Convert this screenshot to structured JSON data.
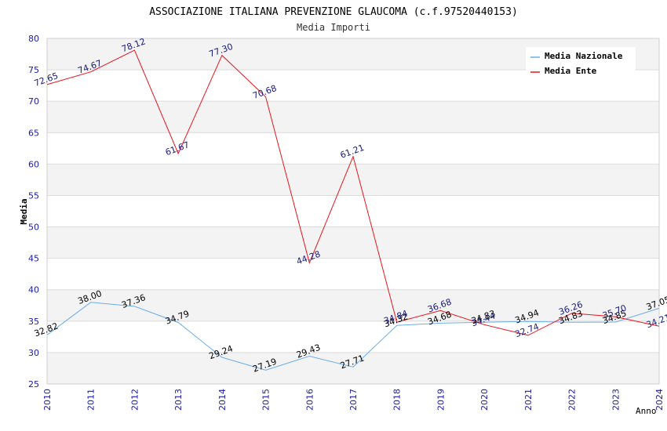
{
  "chart_data": {
    "type": "line",
    "title": "ASSOCIAZIONE ITALIANA PREVENZIONE GLAUCOMA (c.f.97520440153)",
    "subtitle": "Media Importi",
    "xlabel": "Anno",
    "ylabel": "Media",
    "ylim": [
      25,
      80
    ],
    "ytick_step": 5,
    "grid": true,
    "legend_position": "top-right",
    "x": [
      2010,
      2011,
      2012,
      2013,
      2014,
      2015,
      2016,
      2017,
      2018,
      2019,
      2020,
      2021,
      2022,
      2023,
      2024
    ],
    "series": [
      {
        "name": "Media Nazionale",
        "color": "#6aaee8",
        "label_color": "#000000",
        "values": [
          32.82,
          38.0,
          37.36,
          34.79,
          29.24,
          27.19,
          29.43,
          27.71,
          34.32,
          34.68,
          34.83,
          34.94,
          34.83,
          34.85,
          37.05
        ],
        "labels": [
          "32.82",
          "38.00",
          "37.36",
          "34.79",
          "29.24",
          "27.19",
          "29.43",
          "27.71",
          "34.32",
          "34.68",
          "34.83",
          "34.94",
          "34.83",
          "34.85",
          "37.05"
        ]
      },
      {
        "name": "Media Ente",
        "color": "#e8141e",
        "label_color": "#1a1a7a",
        "values": [
          72.65,
          74.67,
          78.12,
          61.67,
          77.3,
          70.68,
          44.28,
          61.21,
          34.84,
          36.68,
          34.44,
          32.74,
          36.26,
          35.7,
          34.21
        ],
        "labels": [
          "72.65",
          "74.67",
          "78.12",
          "61.67",
          "77.30",
          "70.68",
          "44.28",
          "61.21",
          "34.84",
          "36.68",
          "34.44",
          "32.74",
          "36.26",
          "35.70",
          "34.21"
        ]
      }
    ]
  }
}
